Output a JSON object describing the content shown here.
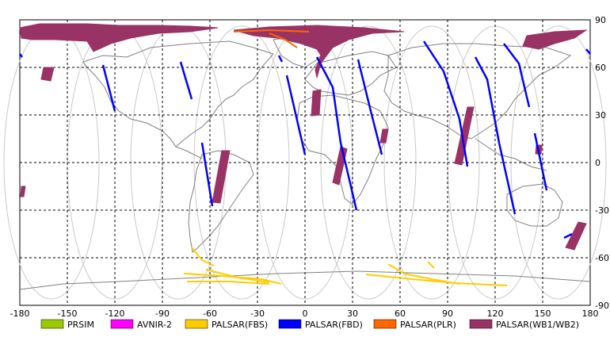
{
  "map": {
    "x_ticks": [
      "-180",
      "-150",
      "-120",
      "-90",
      "-60",
      "-30",
      "0",
      "30",
      "60",
      "90",
      "120",
      "150",
      "180"
    ],
    "y_ticks": [
      "90",
      "60",
      "30",
      "0",
      "-30",
      "-60",
      "-90"
    ],
    "x_range": [
      -180,
      180
    ],
    "y_range": [
      -90,
      90
    ],
    "grid": true
  },
  "legend": [
    {
      "label": "PRSIM",
      "color": "#99cc00"
    },
    {
      "label": "AVNIR-2",
      "color": "#ff00ff"
    },
    {
      "label": "PALSAR(FBS)",
      "color": "#ffcc00"
    },
    {
      "label": "PALSAR(FBD)",
      "color": "#0000ff"
    },
    {
      "label": "PALSAR(PLR)",
      "color": "#ff6600"
    },
    {
      "label": "PALSAR(WB1/WB2)",
      "color": "#993366"
    }
  ]
}
